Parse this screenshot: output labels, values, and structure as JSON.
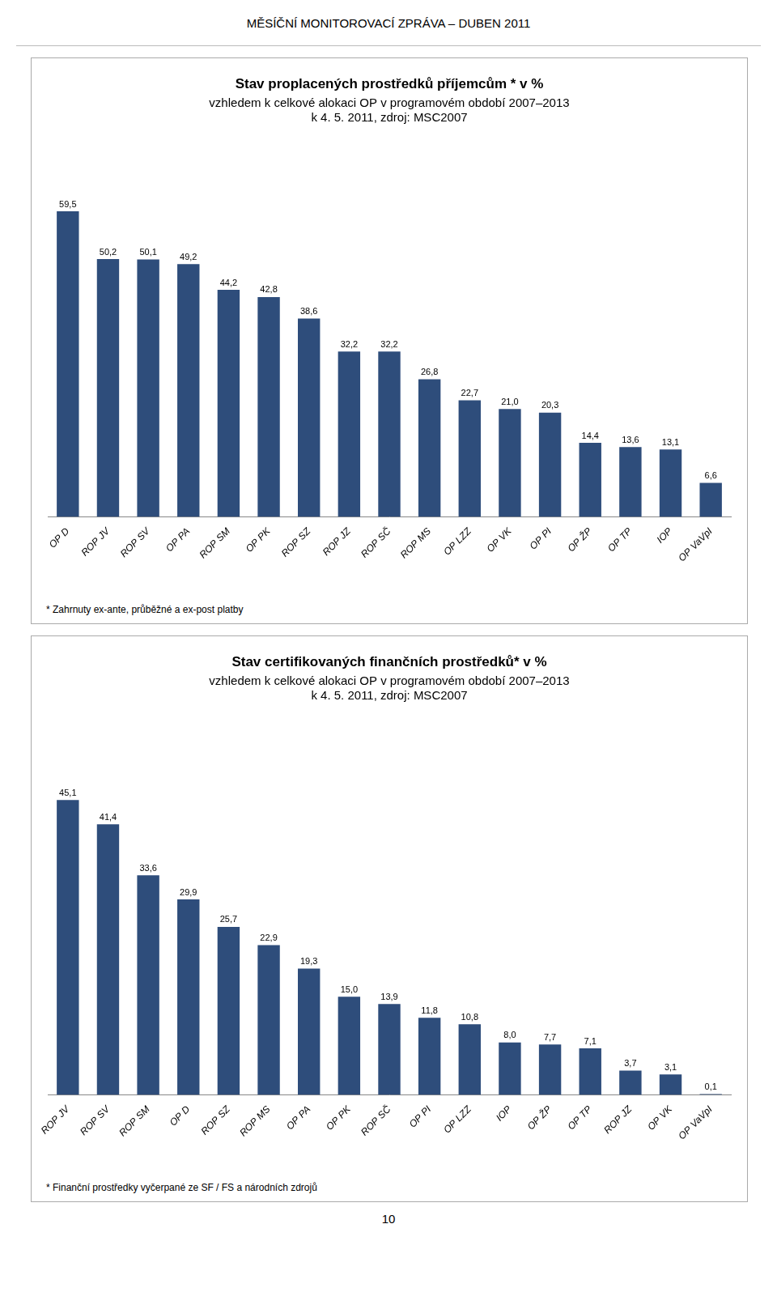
{
  "title": "MĚSÍČNÍ MONITOROVACÍ ZPRÁVA – DUBEN 2011",
  "annotations": [
    "10"
  ],
  "chart_data": [
    {
      "type": "bar",
      "title": "Stav proplacených prostředků příjemcům * v %",
      "subtitle": [
        "vzhledem k celkové alokaci OP v programovém období 2007–2013",
        "k 4. 5. 2011, zdroj: MSC2007"
      ],
      "annotations": [
        "* Zahrnuty ex-ante, průběžné a ex-post platby"
      ],
      "categories": [
        "OP D",
        "ROP JV",
        "ROP SV",
        "OP PA",
        "ROP SM",
        "OP PK",
        "ROP SZ",
        "ROP JZ",
        "ROP SČ",
        "ROP MS",
        "OP LZZ",
        "OP VK",
        "OP PI",
        "OP ŽP",
        "OP TP",
        "IOP",
        "OP VaVpI"
      ],
      "values": [
        59.5,
        50.2,
        50.1,
        49.2,
        44.2,
        42.8,
        38.6,
        32.2,
        32.2,
        26.8,
        22.7,
        21.0,
        20.3,
        14.4,
        13.6,
        13.1,
        6.6
      ],
      "value_labels": [
        "59,5",
        "50,2",
        "50,1",
        "49,2",
        "44,2",
        "42,8",
        "38,6",
        "32,2",
        "32,2",
        "26,8",
        "22,7",
        "21,0",
        "20,3",
        "14,4",
        "13,6",
        "13,1",
        "6,6"
      ],
      "color": "#2E4D7B",
      "ylim": [
        0,
        70
      ],
      "grid": false,
      "data_labels": true,
      "tick_labels": "x"
    },
    {
      "type": "bar",
      "title": "Stav certifikovaných finančních prostředků* v %",
      "subtitle": [
        "vzhledem k celkové alokaci OP v programovém období 2007–2013",
        "k 4. 5. 2011, zdroj: MSC2007"
      ],
      "annotations": [
        "* Finanční prostředky vyčerpané ze SF / FS a národních zdrojů"
      ],
      "categories": [
        "ROP JV",
        "ROP SV",
        "ROP SM",
        "OP D",
        "ROP SZ",
        "ROP MS",
        "OP PA",
        "OP PK",
        "ROP SČ",
        "OP PI",
        "OP LZZ",
        "IOP",
        "OP ŽP",
        "OP TP",
        "ROP JZ",
        "OP VK",
        "OP VaVpI"
      ],
      "values": [
        45.1,
        41.4,
        33.6,
        29.9,
        25.7,
        22.9,
        19.3,
        15.0,
        13.9,
        11.8,
        10.8,
        8.0,
        7.7,
        7.1,
        3.7,
        3.1,
        0.1
      ],
      "value_labels": [
        "45,1",
        "41,4",
        "33,6",
        "29,9",
        "25,7",
        "22,9",
        "19,3",
        "15,0",
        "13,9",
        "11,8",
        "10,8",
        "8,0",
        "7,7",
        "7,1",
        "3,7",
        "3,1",
        "0,1"
      ],
      "color": "#2E4D7B",
      "ylim": [
        0,
        55
      ],
      "grid": false,
      "data_labels": true,
      "tick_labels": "x"
    }
  ]
}
